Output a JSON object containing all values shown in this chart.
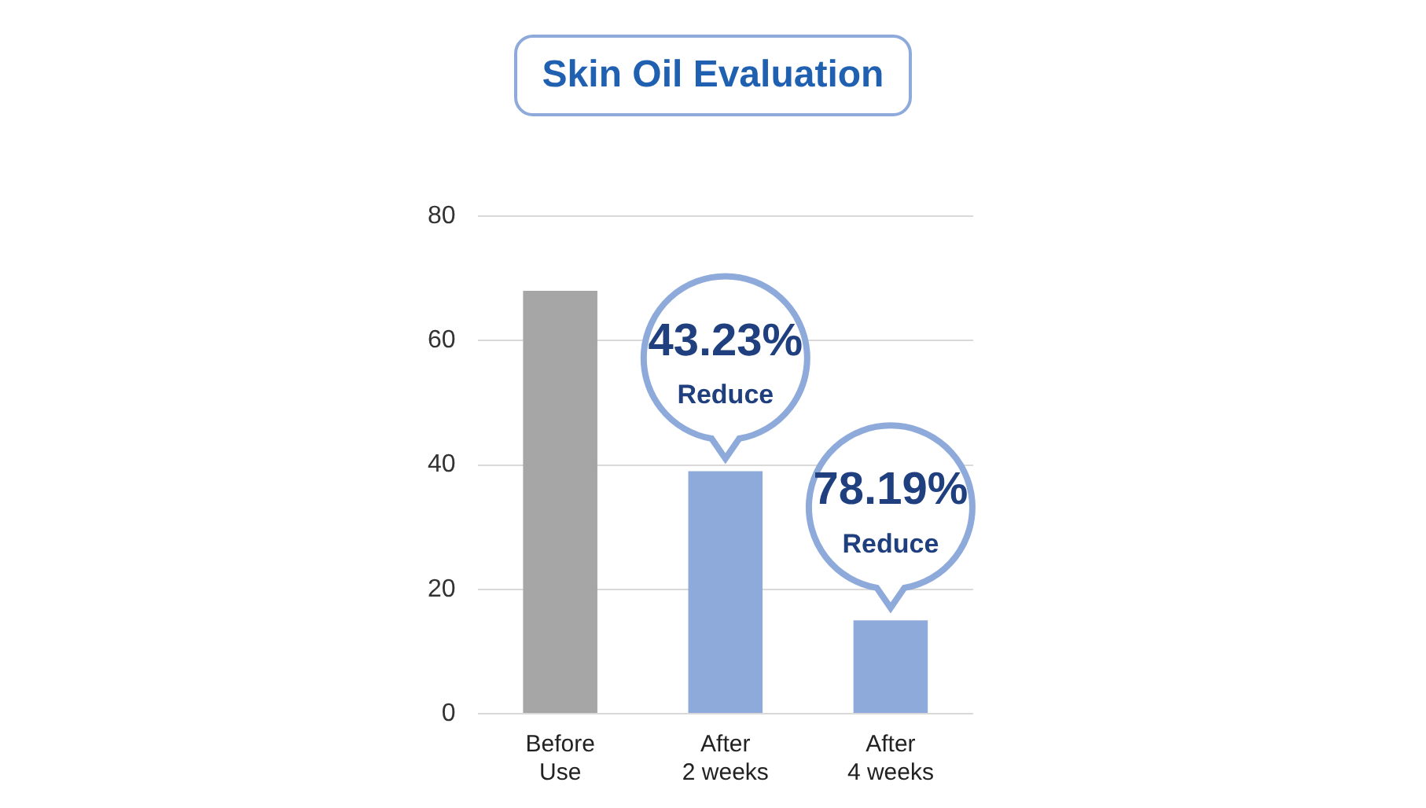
{
  "chart_data": {
    "type": "bar",
    "title": "Skin Oil Evaluation",
    "categories": [
      "Before Use",
      "After 2 weeks",
      "After 4 weeks"
    ],
    "values": [
      68,
      39,
      15
    ],
    "colors": [
      "#a6a6a6",
      "#8eaadb",
      "#8eaadb"
    ],
    "ylim": [
      0,
      80
    ],
    "yticks": [
      0,
      20,
      40,
      60,
      80
    ],
    "grid": "y",
    "annotations": [
      {
        "text": "43.23% Reduce",
        "x": "After 2 weeks",
        "y": 39
      },
      {
        "text": "78.19% Reduce",
        "x": "After 4 weeks",
        "y": 15
      }
    ]
  }
}
